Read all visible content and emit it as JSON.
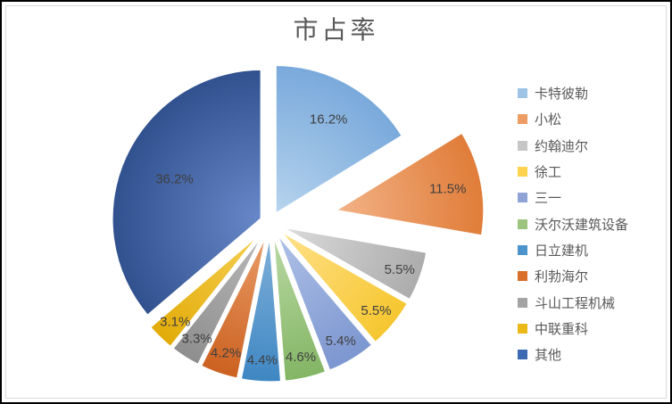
{
  "window": {
    "background": "#FFFFFF",
    "outer_border_color": "#000000",
    "chart_border_color": "#D9D9D9"
  },
  "chart_data": {
    "type": "pie",
    "title": "市占率",
    "title_color": "#595959",
    "label_color": "#3F3F3F",
    "legend_position": "right",
    "legend_text_color": "#595959",
    "slice_border_color": "#FFFFFF",
    "start_angle_deg": 0,
    "direction": "clockwise",
    "series": [
      {
        "name": "卡特彼勒",
        "value": 16.2,
        "label": "16.2%",
        "color": "#79A9DB",
        "color_light": "#B7D4EE",
        "legend_swatch": "#9DC3E6",
        "explode": 0.065,
        "label_r": 0.73
      },
      {
        "name": "小松",
        "value": 11.5,
        "label": "11.5%",
        "color": "#E07C38",
        "color_light": "#F3B388",
        "legend_swatch": "#ED9C63",
        "explode": 0.435,
        "label_r": 0.77
      },
      {
        "name": "约翰迪尔",
        "value": 5.5,
        "label": "5.5%",
        "color": "#ACACAC",
        "color_light": "#DCDCDC",
        "legend_swatch": "#C6C6C6",
        "explode": 0.065,
        "label_r": 0.85
      },
      {
        "name": "徐工",
        "value": 5.5,
        "label": "5.5%",
        "color": "#F6C62F",
        "color_light": "#FFE18C",
        "legend_swatch": "#FFD350",
        "explode": 0.065,
        "label_r": 0.85
      },
      {
        "name": "三一",
        "value": 5.4,
        "label": "5.4%",
        "color": "#7C96D0",
        "color_light": "#B0C2E7",
        "legend_swatch": "#8FA3D6",
        "explode": 0.065,
        "label_r": 0.85
      },
      {
        "name": "沃尔沃建筑设备",
        "value": 4.6,
        "label": "4.6%",
        "color": "#82B564",
        "color_light": "#BCDAA5",
        "legend_swatch": "#9CC47E",
        "explode": 0.065,
        "label_r": 0.85
      },
      {
        "name": "日立建机",
        "value": 4.4,
        "label": "4.4%",
        "color": "#3E87C3",
        "color_light": "#82B1DA",
        "legend_swatch": "#4D94CC",
        "explode": 0.065,
        "label_r": 0.85
      },
      {
        "name": "利勃海尔",
        "value": 4.2,
        "label": "4.2%",
        "color": "#CC6120",
        "color_light": "#EA9E6A",
        "legend_swatch": "#D86F2B",
        "explode": 0.065,
        "label_r": 0.85
      },
      {
        "name": "斗山工程机械",
        "value": 3.3,
        "label": "3.3%",
        "color": "#8E8E8E",
        "color_light": "#B9B9B9",
        "legend_swatch": "#A3A3A3",
        "explode": 0.065,
        "label_r": 0.85
      },
      {
        "name": "中联重科",
        "value": 3.1,
        "label": "3.1%",
        "color": "#E2AB08",
        "color_light": "#F7D055",
        "legend_swatch": "#EBB917",
        "explode": 0.065,
        "label_r": 0.85
      },
      {
        "name": "其他",
        "value": 36.2,
        "label": "36.2%",
        "color": "#31508E",
        "color_light": "#6888C9",
        "legend_swatch": "#3E69B3",
        "explode": 0.065,
        "label_r": 0.64
      }
    ]
  }
}
